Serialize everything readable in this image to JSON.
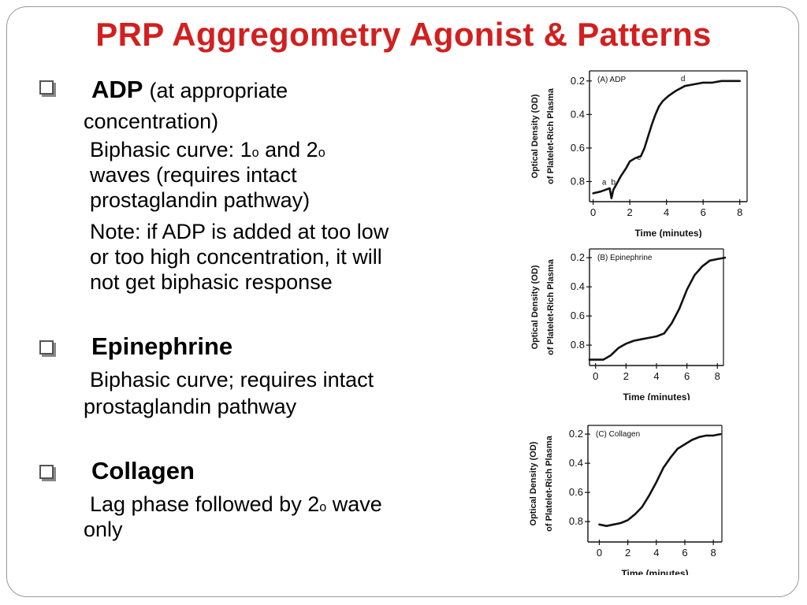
{
  "slide": {
    "title": "PRP Aggregometry Agonist & Patterns"
  },
  "bullets": [
    {
      "heading": "ADP",
      "heading_note": "(at appropriate",
      "lines": [
        "concentration)",
        "Biphasic curve: 1",
        "o",
        " and 2",
        "o",
        "waves (requires intact",
        "prostaglandin pathway)",
        "Note: if ADP is added at too low",
        "or too high concentration, it will",
        "not get biphasic response"
      ]
    },
    {
      "heading": "Epinephrine",
      "lines": [
        "Biphasic curve; requires intact",
        "prostaglandin pathway"
      ]
    },
    {
      "heading": "Collagen",
      "lines": [
        "Lag phase followed by 2",
        "o",
        " wave",
        "only"
      ]
    }
  ],
  "chart_data": [
    {
      "type": "line",
      "title": "(A) ADP",
      "xlabel": "Time (minutes)",
      "ylabel": "Optical Density (OD) of Platelet-Rich Plasma",
      "xlim": [
        -0.2,
        8.4
      ],
      "ylim": [
        0.92,
        0.14
      ],
      "x_ticks": [
        0,
        2,
        4,
        6,
        8
      ],
      "y_ticks": [
        0.2,
        0.4,
        0.6,
        0.8
      ],
      "y_tick_labels": [
        "0.2",
        "0.4",
        "0.6",
        "0.8"
      ],
      "annotations": [
        {
          "text": "a",
          "x": 0.6,
          "y": 0.82
        },
        {
          "text": "b",
          "x": 1.1,
          "y": 0.82
        },
        {
          "text": "c",
          "x": 2.5,
          "y": 0.67
        },
        {
          "text": "d",
          "x": 4.9,
          "y": 0.2
        }
      ],
      "series": [
        {
          "x": [
            0,
            0.4,
            0.9,
            1.0,
            1.1,
            1.3,
            1.5,
            1.8,
            2.0,
            2.3,
            2.6,
            2.8,
            3.0,
            3.2,
            3.4,
            3.6,
            3.8,
            4.1,
            4.5,
            5.0,
            5.5,
            6.0,
            6.5,
            7.0,
            7.5,
            8.0
          ],
          "y": [
            0.87,
            0.86,
            0.84,
            0.9,
            0.85,
            0.81,
            0.77,
            0.72,
            0.68,
            0.66,
            0.65,
            0.6,
            0.53,
            0.46,
            0.4,
            0.35,
            0.32,
            0.29,
            0.26,
            0.23,
            0.22,
            0.21,
            0.21,
            0.2,
            0.2,
            0.2
          ]
        }
      ]
    },
    {
      "type": "line",
      "title": "(B) Epinephrine",
      "xlabel": "Time (minutes)",
      "ylabel": "Optical Density (OD) of Platelet-Rich Plasma",
      "xlim": [
        -0.4,
        8.4
      ],
      "ylim": [
        0.94,
        0.14
      ],
      "x_ticks": [
        0,
        2,
        4,
        6,
        8
      ],
      "y_ticks": [
        0.2,
        0.4,
        0.6,
        0.8
      ],
      "y_tick_labels": [
        "0.2",
        "0.4",
        "0.6",
        "0.8"
      ],
      "series": [
        {
          "x": [
            -0.4,
            0,
            0.5,
            1.0,
            1.5,
            2.0,
            2.5,
            3.0,
            3.5,
            4.0,
            4.5,
            5.0,
            5.5,
            6.0,
            6.5,
            7.0,
            7.5,
            8.0,
            8.5
          ],
          "y": [
            0.9,
            0.9,
            0.9,
            0.87,
            0.82,
            0.79,
            0.77,
            0.76,
            0.75,
            0.74,
            0.72,
            0.65,
            0.55,
            0.42,
            0.32,
            0.26,
            0.22,
            0.21,
            0.2
          ]
        }
      ]
    },
    {
      "type": "line",
      "title": "(C) Collagen",
      "xlabel": "Time (minutes)",
      "ylabel": "Optical Density (OD) of Platelet-Rich Plasma",
      "xlim": [
        -0.8,
        8.6
      ],
      "ylim": [
        0.94,
        0.14
      ],
      "x_ticks": [
        0,
        2,
        4,
        6,
        8
      ],
      "y_ticks": [
        0.2,
        0.4,
        0.6,
        0.8
      ],
      "y_tick_labels": [
        "0.2",
        "0.4",
        "0.6",
        "0.8"
      ],
      "series": [
        {
          "x": [
            0,
            0.5,
            1.0,
            1.5,
            2.0,
            2.5,
            3.0,
            3.5,
            4.0,
            4.5,
            5.0,
            5.5,
            6.0,
            6.5,
            7.0,
            7.5,
            8.0,
            8.5
          ],
          "y": [
            0.82,
            0.83,
            0.82,
            0.81,
            0.79,
            0.75,
            0.7,
            0.62,
            0.53,
            0.43,
            0.36,
            0.3,
            0.27,
            0.24,
            0.22,
            0.21,
            0.21,
            0.2
          ]
        }
      ]
    }
  ]
}
